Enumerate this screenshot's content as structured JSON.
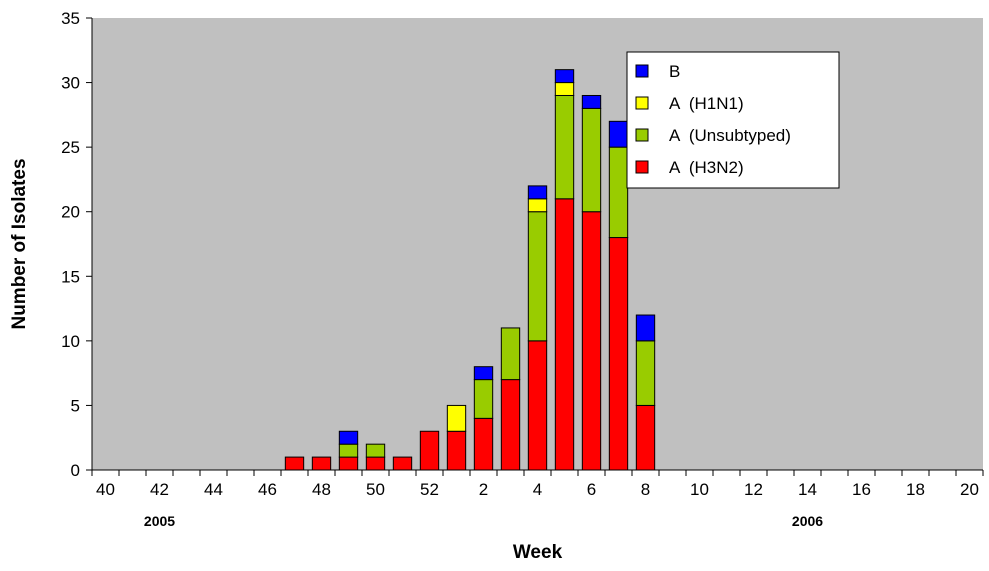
{
  "chart_data": {
    "type": "bar",
    "stacked": true,
    "title": "",
    "xlabel": "Week",
    "ylabel": "Number of Isolates",
    "ylim": [
      0,
      35
    ],
    "y_ticks": [
      "0",
      "5",
      "10",
      "15",
      "20",
      "25",
      "30",
      "35"
    ],
    "categories": [
      "40",
      "41",
      "42",
      "43",
      "44",
      "45",
      "46",
      "47",
      "48",
      "49",
      "50",
      "51",
      "52",
      "1",
      "2",
      "3",
      "4",
      "5",
      "6",
      "7",
      "8",
      "9",
      "10",
      "11",
      "12",
      "13",
      "14",
      "15",
      "16",
      "17",
      "18",
      "19",
      "20"
    ],
    "x_tick_labels": [
      "40",
      "",
      "42",
      "",
      "44",
      "",
      "46",
      "",
      "48",
      "",
      "50",
      "",
      "52",
      "",
      "2",
      "",
      "4",
      "",
      "6",
      "",
      "8",
      "",
      "10",
      "",
      "12",
      "",
      "14",
      "",
      "16",
      "",
      "18",
      "",
      "20"
    ],
    "year_labels": [
      {
        "text": "2005",
        "category": "42"
      },
      {
        "text": "2006",
        "category": "14"
      }
    ],
    "grid": false,
    "background_color": "#c0c0c0",
    "legend_position": "top-right",
    "series": [
      {
        "name": "A  (H3N2)",
        "color": "#ff0000",
        "values": [
          0,
          0,
          0,
          0,
          0,
          0,
          0,
          1,
          1,
          1,
          1,
          1,
          3,
          3,
          4,
          7,
          10,
          21,
          20,
          18,
          5,
          0,
          0,
          0,
          0,
          0,
          0,
          0,
          0,
          0,
          0,
          0,
          0
        ]
      },
      {
        "name": "A  (Unsubtyped)",
        "color": "#99cc00",
        "values": [
          0,
          0,
          0,
          0,
          0,
          0,
          0,
          0,
          0,
          1,
          1,
          0,
          0,
          0,
          3,
          4,
          10,
          8,
          8,
          7,
          5,
          0,
          0,
          0,
          0,
          0,
          0,
          0,
          0,
          0,
          0,
          0,
          0
        ]
      },
      {
        "name": "A  (H1N1)",
        "color": "#ffff00",
        "values": [
          0,
          0,
          0,
          0,
          0,
          0,
          0,
          0,
          0,
          0,
          0,
          0,
          0,
          2,
          0,
          0,
          1,
          1,
          0,
          0,
          0,
          0,
          0,
          0,
          0,
          0,
          0,
          0,
          0,
          0,
          0,
          0,
          0
        ]
      },
      {
        "name": "B",
        "color": "#0000ff",
        "values": [
          0,
          0,
          0,
          0,
          0,
          0,
          0,
          0,
          0,
          1,
          0,
          0,
          0,
          0,
          1,
          0,
          1,
          1,
          1,
          2,
          2,
          0,
          0,
          0,
          0,
          0,
          0,
          0,
          0,
          0,
          0,
          0,
          0
        ]
      }
    ],
    "legend_order": [
      "B",
      "A  (H1N1)",
      "A  (Unsubtyped)",
      "A  (H3N2)"
    ]
  }
}
